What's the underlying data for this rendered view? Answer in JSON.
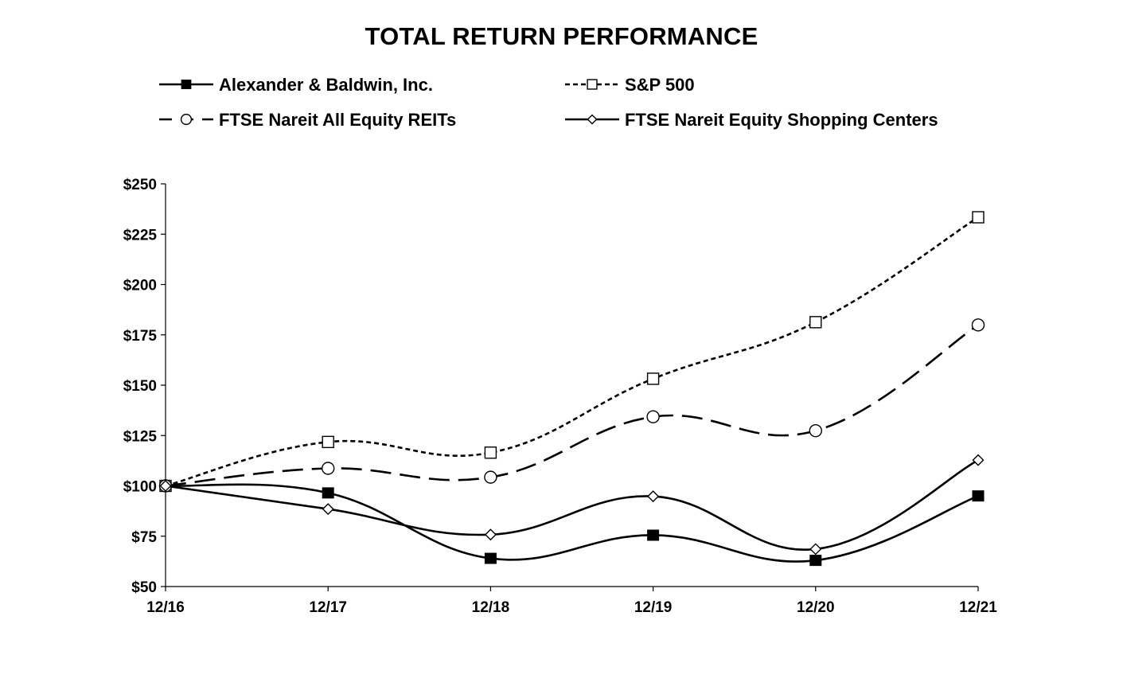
{
  "chart_data": {
    "type": "line",
    "title": "TOTAL RETURN PERFORMANCE",
    "categories": [
      "12/16",
      "12/17",
      "12/18",
      "12/19",
      "12/20",
      "12/21"
    ],
    "ylim": [
      50,
      250
    ],
    "yticks": [
      50,
      75,
      100,
      125,
      150,
      175,
      200,
      225,
      250
    ],
    "ytick_prefix": "$",
    "grid": false,
    "legend_position": "top",
    "series": [
      {
        "name": "Alexander & Baldwin, Inc.",
        "style": "solid",
        "marker": "filled-square",
        "values": [
          100,
          96.5,
          64,
          75.5,
          63,
          95
        ]
      },
      {
        "name": "S&P 500",
        "style": "short-dash",
        "marker": "open-square",
        "values": [
          100,
          121.8,
          116.5,
          153.2,
          181.3,
          233.4
        ]
      },
      {
        "name": "FTSE Nareit All Equity REITs",
        "style": "long-dash",
        "marker": "open-circle",
        "values": [
          100,
          108.7,
          104.3,
          134.3,
          127.4,
          179.9
        ]
      },
      {
        "name": "FTSE Nareit Equity Shopping Centers",
        "style": "solid",
        "marker": "open-diamond",
        "values": [
          100,
          88.5,
          75.8,
          94.8,
          68.6,
          112.8
        ]
      }
    ]
  }
}
